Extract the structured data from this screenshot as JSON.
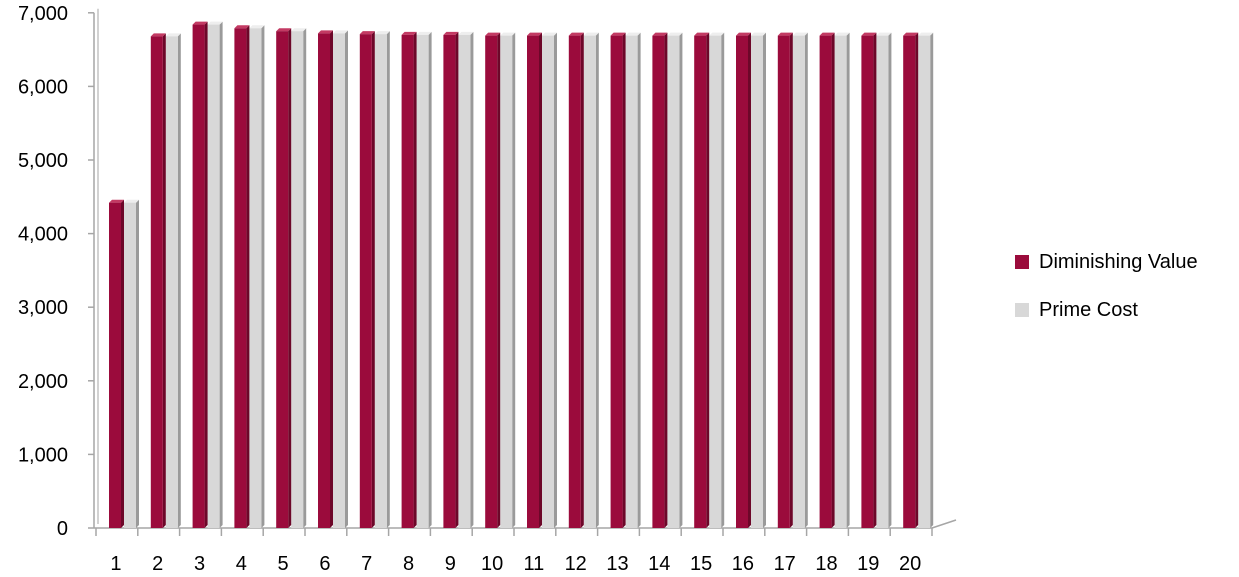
{
  "colors": {
    "series1_front": "#9b0b3c",
    "series1_side": "#6d0729",
    "series1_top": "#c33a63",
    "series2_front": "#d8d8d8",
    "series2_side": "#9a9a9a",
    "series2_top": "#eeeeee",
    "axis": "#a6a6a6"
  },
  "chart_data": {
    "type": "bar",
    "categories": [
      "1",
      "2",
      "3",
      "4",
      "5",
      "6",
      "7",
      "8",
      "9",
      "10",
      "11",
      "12",
      "13",
      "14",
      "15",
      "16",
      "17",
      "18",
      "19",
      "20"
    ],
    "series": [
      {
        "name": "Diminishing Value",
        "values": [
          4420,
          6680,
          6840,
          6790,
          6750,
          6720,
          6710,
          6700,
          6700,
          6690,
          6690,
          6690,
          6690,
          6690,
          6690,
          6690,
          6690,
          6690,
          6690,
          6690
        ]
      },
      {
        "name": "Prime Cost",
        "values": [
          4420,
          6680,
          6840,
          6790,
          6750,
          6720,
          6710,
          6700,
          6700,
          6690,
          6690,
          6690,
          6690,
          6690,
          6690,
          6690,
          6690,
          6690,
          6690,
          6690
        ]
      }
    ],
    "y_ticks": [
      "0",
      "1,000",
      "2,000",
      "3,000",
      "4,000",
      "5,000",
      "6,000",
      "7,000"
    ],
    "ylim": [
      0,
      7000
    ],
    "grid": false,
    "legend_position": "right"
  }
}
